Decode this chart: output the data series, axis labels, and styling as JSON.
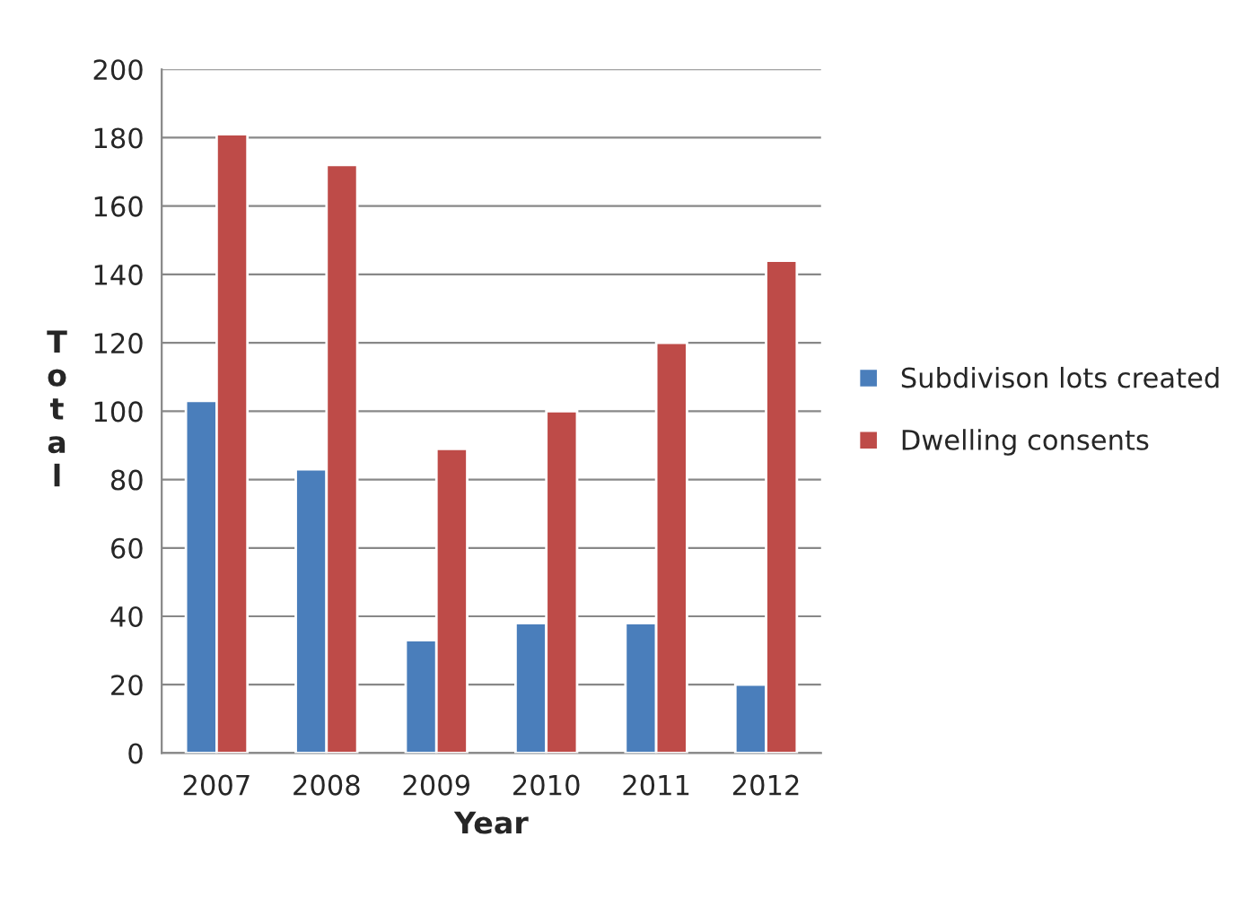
{
  "chart_data": {
    "type": "bar",
    "xlabel": "Year",
    "ylabel": "Total",
    "categories": [
      "2007",
      "2008",
      "2009",
      "2010",
      "2011",
      "2012"
    ],
    "series": [
      {
        "name": "Subdivison lots created",
        "color": "#4a7ebb",
        "values": [
          103,
          83,
          33,
          38,
          38,
          20
        ]
      },
      {
        "name": "Dwelling consents",
        "color": "#be4b48",
        "values": [
          181,
          172,
          89,
          100,
          120,
          144
        ]
      }
    ],
    "ylim": [
      0,
      200
    ],
    "yticks": [
      0,
      20,
      40,
      60,
      80,
      100,
      120,
      140,
      160,
      180,
      200
    ],
    "grid": "y",
    "legend": "right"
  }
}
